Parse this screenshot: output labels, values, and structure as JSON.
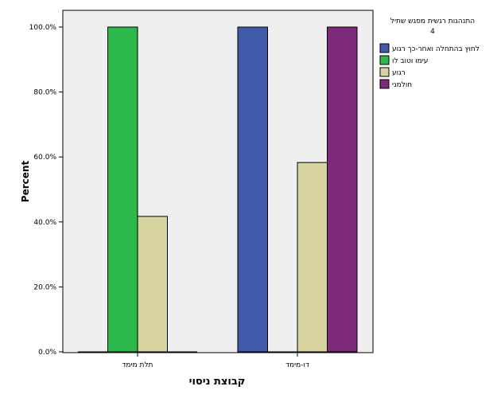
{
  "chart_data": {
    "type": "bar",
    "categories": [
      "תלת מימד",
      "דו-מימד"
    ],
    "series": [
      {
        "name": "לחוץ בהתחלה ואחר-כך רגוע",
        "color": "#3f5aa8",
        "values": [
          0,
          100
        ]
      },
      {
        "name": "עימו וטוב לו",
        "color": "#2db84b",
        "values": [
          100,
          0
        ]
      },
      {
        "name": "רגוע",
        "color": "#d8d4a0",
        "values": [
          41.7,
          58.3
        ]
      },
      {
        "name": "חולמני",
        "color": "#7d2a7a",
        "values": [
          0,
          100
        ]
      }
    ],
    "xlabel": "קבוצת ניסוי",
    "ylabel": "Percent",
    "ylim": [
      0,
      100
    ],
    "yticks": [
      "0.0%",
      "20.0%",
      "40.0%",
      "60.0%",
      "80.0%",
      "100.0%"
    ],
    "legend": {
      "title_line1": "התנהגות רגשית מפגש שתיל",
      "title_line2": "4",
      "placement": "right"
    },
    "plot_background": "#efefef"
  }
}
